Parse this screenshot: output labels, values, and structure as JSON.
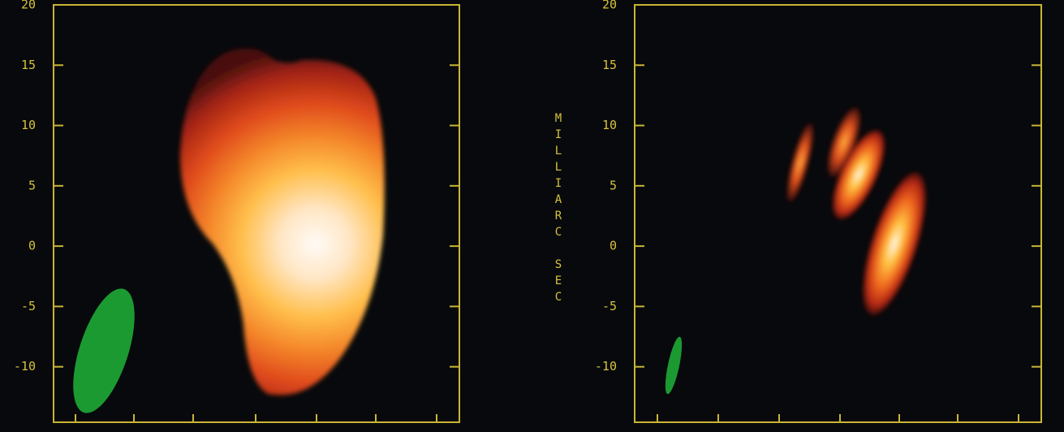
{
  "chart_data": [
    {
      "type": "image",
      "ylim": [
        -14.6,
        20
      ],
      "yticks": [
        -10,
        -5,
        0,
        5,
        10,
        15,
        20
      ]
    },
    {
      "type": "image",
      "ylabel": "MILLIARC SEC",
      "ylim": [
        -14.6,
        20
      ],
      "yticks": [
        -10,
        -5,
        0,
        5,
        10,
        15,
        20
      ]
    }
  ]
}
